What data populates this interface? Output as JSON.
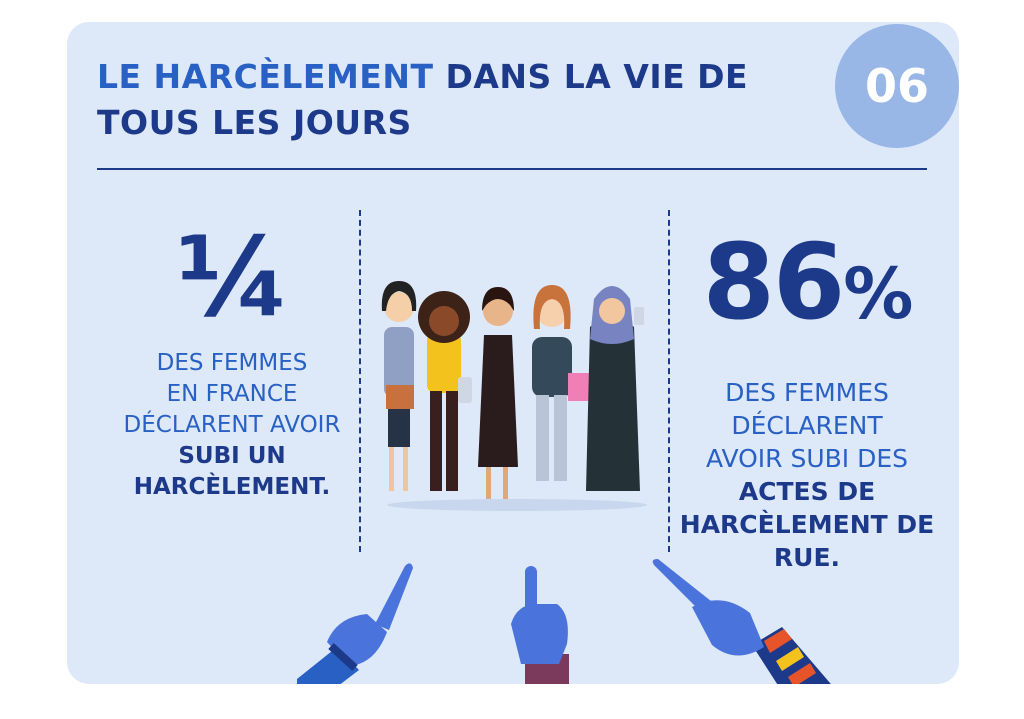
{
  "header": {
    "title_highlight": "LE HARCÈLEMENT",
    "title_rest": " DANS LA VIE DE TOUS LES JOURS",
    "number": "06"
  },
  "stats": {
    "left": {
      "value": "¼",
      "line1": "DES FEMMES",
      "line2": "EN FRANCE",
      "line3": "DÉCLARENT AVOIR",
      "bold1": "SUBI UN",
      "bold2": "HARCÈLEMENT."
    },
    "right": {
      "value": "86",
      "unit": "%",
      "line1": "DES FEMMES",
      "line2": "DÉCLARENT",
      "line3": "AVOIR SUBI DES",
      "bold1": "ACTES DE",
      "bold2": "HARCÈLEMENT DE",
      "bold3": "RUE."
    }
  },
  "colors": {
    "navy": "#1d3a8a",
    "blue": "#2860c4",
    "card": "#dde8f8",
    "circle": "#98b6e6",
    "glove": "#4a74dc"
  }
}
